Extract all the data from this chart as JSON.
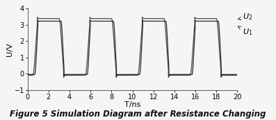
{
  "title": "Figure 5 Simulation Diagram after Resistance Changing",
  "xlabel": "T/ns",
  "ylabel": "U/V",
  "xlim": [
    0,
    20
  ],
  "ylim": [
    -1,
    4
  ],
  "yticks": [
    -1,
    0,
    1,
    2,
    3,
    4
  ],
  "xticks": [
    0,
    2,
    4,
    6,
    8,
    10,
    12,
    14,
    16,
    18,
    20
  ],
  "color_u1": "#2a2a2a",
  "color_u2": "#4a4a4a",
  "bg_color": "#f5f5f5",
  "period": 5.0,
  "high_u2": 3.38,
  "low_u2": -0.1,
  "high_u1": 3.22,
  "low_u1": -0.05,
  "rise_time_u2": 0.55,
  "fall_time_u2": 0.55,
  "rise_time_u1": 0.38,
  "fall_time_u1": 0.38,
  "overshoot_u2": 0.08,
  "undershoot_u2": 0.12,
  "overshoot_u1": 0.04,
  "undershoot_u1": 0.08,
  "duty_on": 2.5,
  "start_rise_u2": 0.5,
  "start_rise_u1": 0.68,
  "label_u2": "$U_2$",
  "label_u1": "$U_1$",
  "title_fontsize": 8.5,
  "axis_fontsize": 8,
  "tick_fontsize": 7,
  "label_fontsize": 8
}
